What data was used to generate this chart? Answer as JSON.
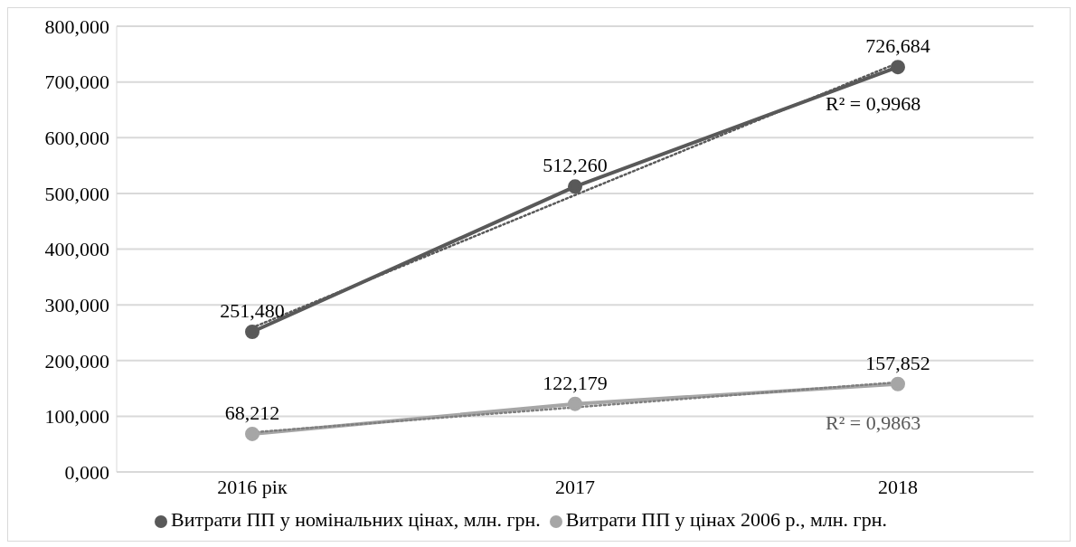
{
  "chart_data": {
    "type": "line",
    "categories": [
      "2016 рік",
      "2017",
      "2018"
    ],
    "series": [
      {
        "name": "Витрати ПП у номінальних цінах, млн. грн.",
        "color": "#595959",
        "values": [
          251.48,
          512.26,
          726.684
        ],
        "value_labels": [
          "251,480",
          "512,260",
          "726,684"
        ],
        "marker": "circle",
        "line_style": "solid"
      },
      {
        "name": "Витрати ПП у цінах 2006 р., млн. грн.",
        "color": "#a6a6a6",
        "values": [
          68.212,
          122.179,
          157.852
        ],
        "value_labels": [
          "68,212",
          "122,179",
          "157,852"
        ],
        "marker": "circle",
        "line_style": "solid"
      },
      {
        "type": "line",
        "color": "#595959",
        "values": [
          259,
          497,
          734
        ],
        "marker": "none",
        "line_style": "dotted"
      },
      {
        "type": "line",
        "color": "#7f7f7f",
        "values": [
          71,
          116,
          161
        ],
        "marker": "none",
        "line_style": "dotted"
      }
    ],
    "ylim": [
      0,
      800
    ],
    "yticks": [
      {
        "value": 0,
        "label": "0,000"
      },
      {
        "value": 100,
        "label": "100,000"
      },
      {
        "value": 200,
        "label": "200,000"
      },
      {
        "value": 300,
        "label": "300,000"
      },
      {
        "value": 400,
        "label": "400,000"
      },
      {
        "value": 500,
        "label": "500,000"
      },
      {
        "value": 600,
        "label": "600,000"
      },
      {
        "value": 700,
        "label": "700,000"
      },
      {
        "value": 800,
        "label": "800,000"
      }
    ],
    "grid": "y",
    "legend": "bottom",
    "annotations": [
      "R² = 0,9968",
      "R² = 0,9863"
    ]
  }
}
